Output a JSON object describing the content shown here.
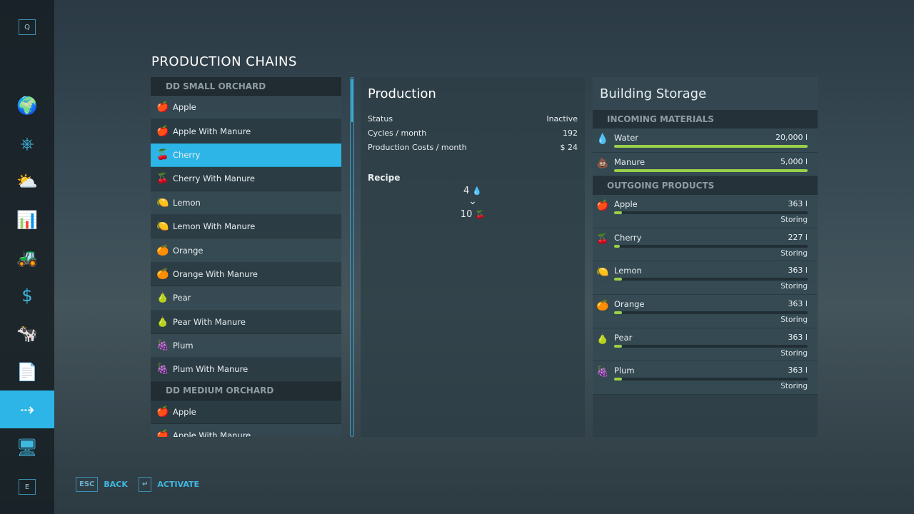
{
  "sidebar": {
    "top_key": "Q",
    "bottom_key": "E",
    "items": [
      {
        "icon": "map-globe-icon",
        "glyph": "🌍"
      },
      {
        "icon": "steering-wheel-icon",
        "glyph": "⎈"
      },
      {
        "icon": "weather-icon",
        "glyph": "⛅"
      },
      {
        "icon": "statistics-icon",
        "glyph": "📊"
      },
      {
        "icon": "tractor-icon",
        "glyph": "🚜"
      },
      {
        "icon": "finances-icon",
        "glyph": "$"
      },
      {
        "icon": "animals-icon",
        "glyph": "🐄"
      },
      {
        "icon": "contracts-icon",
        "glyph": "📄"
      },
      {
        "icon": "production-icon",
        "glyph": "⇢",
        "selected": true
      },
      {
        "icon": "tour-icon",
        "glyph": "🖥"
      }
    ]
  },
  "title": "PRODUCTION CHAINS",
  "list": [
    {
      "group": "DD SMALL ORCHARD"
    },
    {
      "label": "Apple",
      "icon": "🍎"
    },
    {
      "label": "Apple With Manure",
      "icon": "🍎"
    },
    {
      "label": "Cherry",
      "icon": "🍒",
      "selected": true
    },
    {
      "label": "Cherry With Manure",
      "icon": "🍒"
    },
    {
      "label": "Lemon",
      "icon": "🍋"
    },
    {
      "label": "Lemon With Manure",
      "icon": "🍋"
    },
    {
      "label": "Orange",
      "icon": "🍊"
    },
    {
      "label": "Orange With Manure",
      "icon": "🍊"
    },
    {
      "label": "Pear",
      "icon": "🍐"
    },
    {
      "label": "Pear With Manure",
      "icon": "🍐"
    },
    {
      "label": "Plum",
      "icon": "🍇"
    },
    {
      "label": "Plum With Manure",
      "icon": "🍇"
    },
    {
      "group": "DD MEDIUM ORCHARD"
    },
    {
      "label": "Apple",
      "icon": "🍎"
    },
    {
      "label": "Apple With Manure",
      "icon": "🍎"
    }
  ],
  "production": {
    "title": "Production",
    "rows": [
      {
        "k": "Status",
        "v": "Inactive"
      },
      {
        "k": "Cycles / month",
        "v": "192"
      },
      {
        "k": "Production Costs / month",
        "v": "$ 24"
      }
    ],
    "recipe_label": "Recipe",
    "input_amount": "4",
    "input_icon": "💧",
    "arrow": "⌄",
    "output_amount": "10",
    "output_icon": "🍒"
  },
  "storage": {
    "title": "Building Storage",
    "incoming_label": "INCOMING MATERIALS",
    "outgoing_label": "OUTGOING PRODUCTS",
    "incoming": [
      {
        "name": "Water",
        "value": "20,000 l",
        "icon": "💧",
        "fill": 100
      },
      {
        "name": "Manure",
        "value": "5,000 l",
        "icon": "💩",
        "fill": 100
      }
    ],
    "outgoing": [
      {
        "name": "Apple",
        "value": "363 l",
        "icon": "🍎",
        "fill": 4,
        "status": "Storing"
      },
      {
        "name": "Cherry",
        "value": "227 l",
        "icon": "🍒",
        "fill": 3,
        "status": "Storing"
      },
      {
        "name": "Lemon",
        "value": "363 l",
        "icon": "🍋",
        "fill": 4,
        "status": "Storing"
      },
      {
        "name": "Orange",
        "value": "363 l",
        "icon": "🍊",
        "fill": 4,
        "status": "Storing"
      },
      {
        "name": "Pear",
        "value": "363 l",
        "icon": "🍐",
        "fill": 4,
        "status": "Storing"
      },
      {
        "name": "Plum",
        "value": "363 l",
        "icon": "🍇",
        "fill": 4,
        "status": "Storing"
      }
    ]
  },
  "footer": {
    "back_key": "ESC",
    "back_label": "BACK",
    "activate_key": "↵",
    "activate_label": "ACTIVATE"
  },
  "colors": {
    "accent": "#2cb5e6",
    "bar": "#9ad04a"
  }
}
